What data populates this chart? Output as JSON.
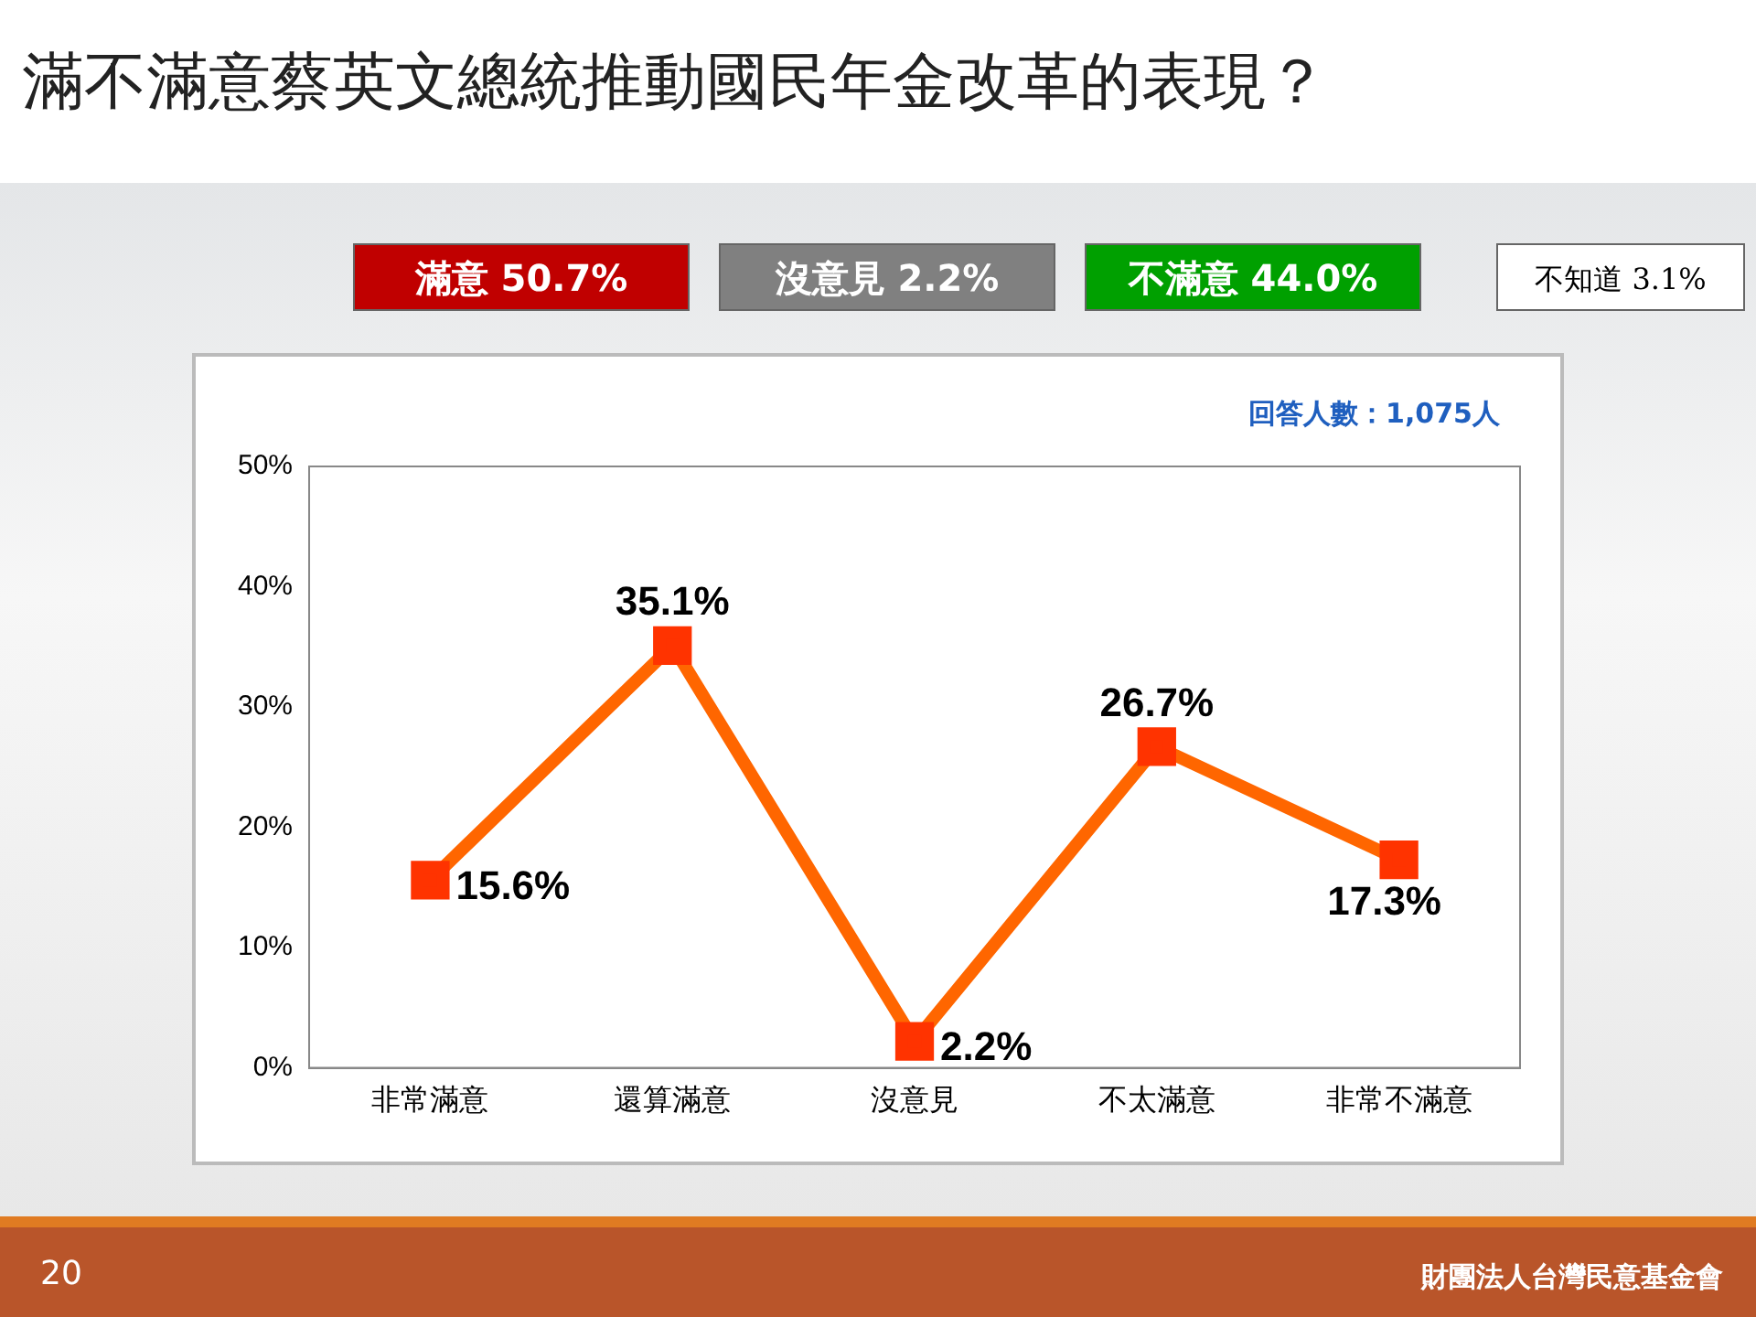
{
  "chart_data": {
    "type": "line",
    "title": "滿不滿意蔡英文總統推動國民年金改革的表現？",
    "categories": [
      "非常滿意",
      "還算滿意",
      "沒意見",
      "不太滿意",
      "非常不滿意"
    ],
    "series": [
      {
        "color": "#ff6600",
        "values": [
          15.6,
          35.1,
          2.2,
          26.7,
          17.3
        ],
        "value_labels": [
          "15.6%",
          "35.1%",
          "2.2%",
          "26.7%",
          "17.3%"
        ]
      }
    ],
    "ylim": [
      0,
      50
    ],
    "yticks": [
      {
        "value": 0,
        "label": "0%"
      },
      {
        "value": 10,
        "label": "10%"
      },
      {
        "value": 20,
        "label": "20%"
      },
      {
        "value": 30,
        "label": "30%"
      },
      {
        "value": 40,
        "label": "40%"
      },
      {
        "value": 50,
        "label": "50%"
      }
    ],
    "grid": false,
    "legend": false,
    "marker": "square",
    "line_style": "solid",
    "annotations": [
      "滿意 50.7%",
      "沒意見 2.2%",
      "不滿意 44.0%",
      "不知道 3.1%",
      "回答人數：1,075人",
      "20",
      "財團法人台灣民意基金會"
    ]
  }
}
